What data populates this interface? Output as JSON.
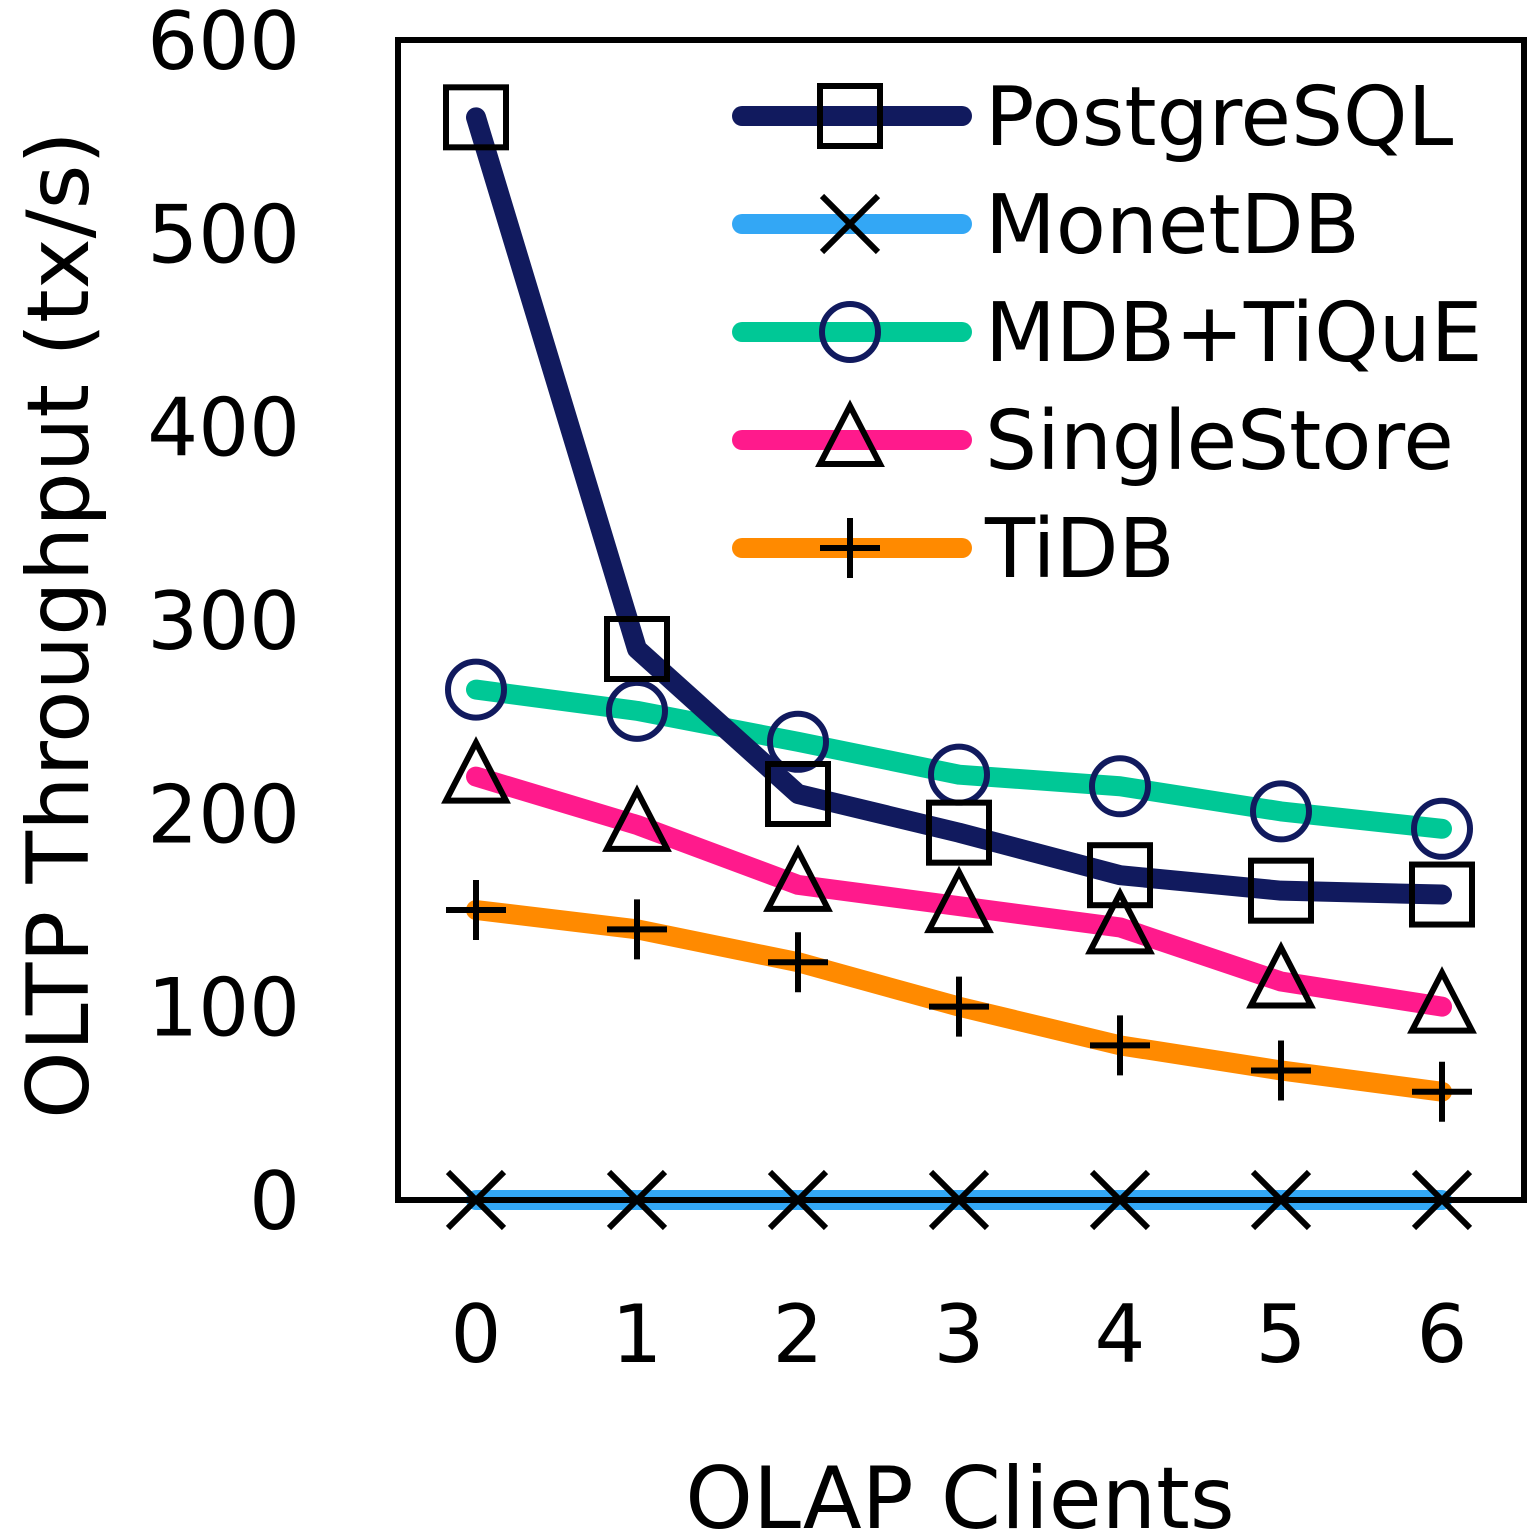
{
  "chart_data": {
    "type": "line",
    "xlabel": "OLAP Clients",
    "ylabel": "OLTP Throughput (tx/s)",
    "x": [
      0,
      1,
      2,
      3,
      4,
      5,
      6
    ],
    "x_tick_labels": [
      "0",
      "1",
      "2",
      "3",
      "4",
      "5",
      "6"
    ],
    "ylim": [
      0,
      600
    ],
    "y_ticks": [
      0,
      100,
      200,
      300,
      400,
      500,
      600
    ],
    "y_tick_labels": [
      "0",
      "100",
      "200",
      "300",
      "400",
      "500",
      "600"
    ],
    "grid": false,
    "legend_position": "top-right",
    "series": [
      {
        "name": "PostgreSQL",
        "color": "#111a5e",
        "marker": "square",
        "values": [
          560,
          285,
          210,
          190,
          168,
          160,
          158
        ]
      },
      {
        "name": "MonetDB",
        "color": "#33a7f5",
        "marker": "x",
        "values": [
          0,
          0,
          0,
          0,
          0,
          0,
          0
        ]
      },
      {
        "name": "MDB+TiQuE",
        "color": "#00c896",
        "marker": "circle",
        "values": [
          264,
          253,
          237,
          220,
          214,
          201,
          192
        ]
      },
      {
        "name": "SingleStore",
        "color": "#ff1a8c",
        "marker": "triangle",
        "values": [
          219,
          194,
          163,
          152,
          141,
          113,
          100
        ]
      },
      {
        "name": "TiDB",
        "color": "#ff8a00",
        "marker": "plus",
        "values": [
          150,
          140,
          123,
          100,
          80,
          67,
          56
        ]
      }
    ]
  }
}
